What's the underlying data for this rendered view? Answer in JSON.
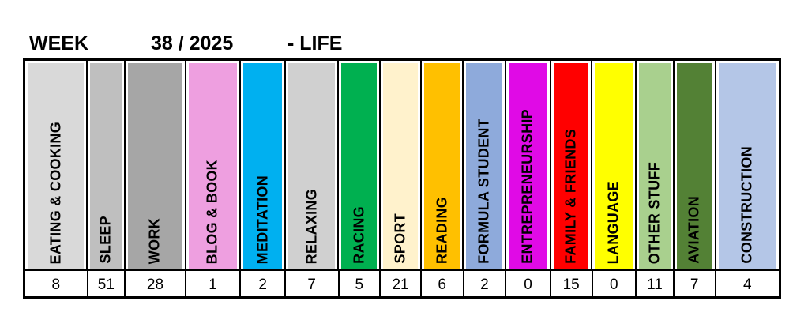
{
  "header": {
    "week_label": "WEEK",
    "week_number": "38 / 2025",
    "category": "- LIFE"
  },
  "chart_data": {
    "type": "table",
    "categories": [
      "EATING & COOKING",
      "SLEEP",
      "WORK",
      "BLOG & BOOK",
      "MEDITATION",
      "RELAXING",
      "RACING",
      "SPORT",
      "READING",
      "FORMULA STUDENT",
      "ENTREPRENEURSHIP",
      "FAMILY & FRIENDS",
      "LANGUAGE",
      "OTHER STUFF",
      "AVIATION",
      "CONSTRUCTION"
    ],
    "values": [
      8,
      51,
      28,
      1,
      2,
      7,
      5,
      21,
      6,
      2,
      0,
      15,
      0,
      11,
      7,
      4
    ],
    "colors": [
      "#d9d9d9",
      "#bfbfbf",
      "#a6a6a6",
      "#ee9fe0",
      "#00b0f0",
      "#d0d0d0",
      "#00b050",
      "#fff2cc",
      "#ffc000",
      "#8eaadb",
      "#e00ae6",
      "#ff0000",
      "#ffff00",
      "#a9d08e",
      "#538135",
      "#b4c6e7"
    ]
  }
}
